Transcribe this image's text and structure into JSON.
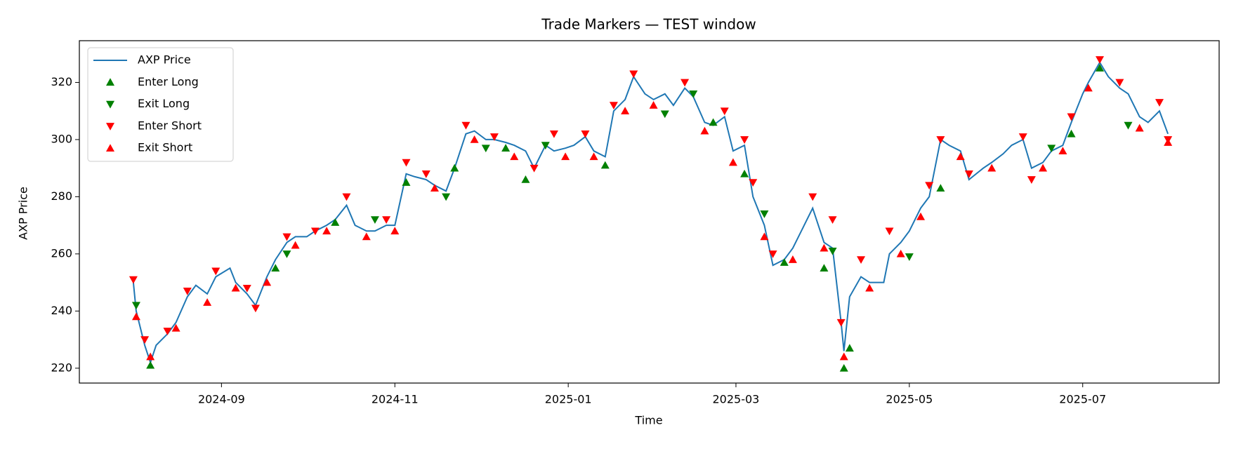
{
  "chart_data": {
    "type": "line",
    "title": "Trade Markers — TEST window",
    "x_label": "Time",
    "y_label": "AXP Price",
    "legend": "upper left",
    "xlim": [
      "2024-07-13",
      "2025-08-18"
    ],
    "ylim": [
      214.8,
      334.6
    ],
    "xticks": [
      {
        "value": "2024-09-01",
        "label": "2024-09"
      },
      {
        "value": "2024-11-01",
        "label": "2024-11"
      },
      {
        "value": "2025-01-01",
        "label": "2025-01"
      },
      {
        "value": "2025-03-01",
        "label": "2025-03"
      },
      {
        "value": "2025-05-01",
        "label": "2025-05"
      },
      {
        "value": "2025-07-01",
        "label": "2025-07"
      }
    ],
    "yticks": [
      220,
      240,
      260,
      280,
      300,
      320
    ],
    "series": [
      {
        "name": "AXP Price",
        "kind": "line",
        "color": "#1f77b4",
        "x": [
          "2024-08-01",
          "2024-08-02",
          "2024-08-05",
          "2024-08-07",
          "2024-08-09",
          "2024-08-13",
          "2024-08-16",
          "2024-08-20",
          "2024-08-23",
          "2024-08-27",
          "2024-08-30",
          "2024-09-04",
          "2024-09-06",
          "2024-09-10",
          "2024-09-13",
          "2024-09-17",
          "2024-09-20",
          "2024-09-24",
          "2024-09-27",
          "2024-10-01",
          "2024-10-04",
          "2024-10-08",
          "2024-10-11",
          "2024-10-15",
          "2024-10-18",
          "2024-10-22",
          "2024-10-25",
          "2024-10-29",
          "2024-11-01",
          "2024-11-05",
          "2024-11-08",
          "2024-11-12",
          "2024-11-15",
          "2024-11-19",
          "2024-11-22",
          "2024-11-26",
          "2024-11-29",
          "2024-12-03",
          "2024-12-06",
          "2024-12-10",
          "2024-12-13",
          "2024-12-17",
          "2024-12-20",
          "2024-12-24",
          "2024-12-27",
          "2024-12-31",
          "2025-01-03",
          "2025-01-07",
          "2025-01-10",
          "2025-01-14",
          "2025-01-17",
          "2025-01-21",
          "2025-01-24",
          "2025-01-28",
          "2025-01-31",
          "2025-02-04",
          "2025-02-07",
          "2025-02-11",
          "2025-02-14",
          "2025-02-18",
          "2025-02-21",
          "2025-02-25",
          "2025-02-28",
          "2025-03-04",
          "2025-03-07",
          "2025-03-11",
          "2025-03-14",
          "2025-03-18",
          "2025-03-21",
          "2025-03-25",
          "2025-03-28",
          "2025-04-01",
          "2025-04-04",
          "2025-04-07",
          "2025-04-08",
          "2025-04-10",
          "2025-04-14",
          "2025-04-17",
          "2025-04-22",
          "2025-04-24",
          "2025-04-28",
          "2025-05-01",
          "2025-05-05",
          "2025-05-08",
          "2025-05-12",
          "2025-05-15",
          "2025-05-19",
          "2025-05-22",
          "2025-05-27",
          "2025-05-30",
          "2025-06-03",
          "2025-06-06",
          "2025-06-10",
          "2025-06-13",
          "2025-06-17",
          "2025-06-20",
          "2025-06-24",
          "2025-06-27",
          "2025-07-01",
          "2025-07-03",
          "2025-07-07",
          "2025-07-10",
          "2025-07-14",
          "2025-07-17",
          "2025-07-21",
          "2025-07-24",
          "2025-07-28",
          "2025-07-31"
        ],
        "values": [
          250,
          240,
          228,
          222,
          228,
          232,
          236,
          245,
          249,
          246,
          252,
          255,
          250,
          246,
          242,
          252,
          258,
          264,
          266,
          266,
          268,
          270,
          272,
          277,
          270,
          268,
          268,
          270,
          270,
          288,
          287,
          286,
          284,
          282,
          290,
          302,
          303,
          300,
          300,
          299,
          298,
          296,
          290,
          298,
          296,
          297,
          298,
          301,
          296,
          294,
          310,
          314,
          322,
          316,
          314,
          316,
          312,
          318,
          315,
          306,
          305,
          308,
          296,
          298,
          280,
          270,
          256,
          258,
          262,
          270,
          276,
          264,
          262,
          236,
          226,
          245,
          252,
          250,
          250,
          260,
          264,
          268,
          276,
          280,
          300,
          298,
          296,
          286,
          290,
          292,
          295,
          298,
          300,
          290,
          292,
          296,
          298,
          306,
          316,
          320,
          327,
          322,
          318,
          316,
          308,
          306,
          310,
          302
        ]
      },
      {
        "name": "Enter Long",
        "kind": "scatter",
        "marker": "triangle-up",
        "color": "#008000",
        "x": [
          "2024-08-07",
          "2024-09-20",
          "2024-10-11",
          "2024-11-05",
          "2024-11-22",
          "2024-12-10",
          "2024-12-17",
          "2025-01-14",
          "2025-02-21",
          "2025-03-04",
          "2025-03-18",
          "2025-04-01",
          "2025-04-08",
          "2025-04-10",
          "2025-05-12",
          "2025-06-27",
          "2025-07-07"
        ],
        "values": [
          221,
          255,
          271,
          285,
          290,
          297,
          286,
          291,
          306,
          288,
          257,
          255,
          220,
          227,
          283,
          302,
          325
        ]
      },
      {
        "name": "Exit Long",
        "kind": "scatter",
        "marker": "triangle-down",
        "color": "#008000",
        "x": [
          "2024-08-02",
          "2024-09-24",
          "2024-10-25",
          "2024-11-19",
          "2024-12-03",
          "2024-12-24",
          "2025-02-04",
          "2025-02-14",
          "2025-03-11",
          "2025-04-04",
          "2025-05-01",
          "2025-06-20",
          "2025-07-17"
        ],
        "values": [
          242,
          260,
          272,
          280,
          297,
          298,
          309,
          316,
          274,
          261,
          259,
          297,
          305
        ]
      },
      {
        "name": "Enter Short",
        "kind": "scatter",
        "marker": "triangle-down",
        "color": "#ff0000",
        "x": [
          "2024-08-01",
          "2024-08-05",
          "2024-08-13",
          "2024-08-20",
          "2024-08-30",
          "2024-09-10",
          "2024-09-13",
          "2024-09-24",
          "2024-10-04",
          "2024-10-15",
          "2024-10-29",
          "2024-11-05",
          "2024-11-12",
          "2024-11-26",
          "2024-12-06",
          "2024-12-20",
          "2024-12-27",
          "2025-01-07",
          "2025-01-17",
          "2025-01-24",
          "2025-02-11",
          "2025-02-25",
          "2025-03-04",
          "2025-03-07",
          "2025-03-14",
          "2025-03-28",
          "2025-04-04",
          "2025-04-07",
          "2025-04-14",
          "2025-04-24",
          "2025-05-08",
          "2025-05-12",
          "2025-05-22",
          "2025-06-10",
          "2025-06-13",
          "2025-06-27",
          "2025-07-07",
          "2025-07-14",
          "2025-07-28",
          "2025-07-31"
        ],
        "values": [
          251,
          230,
          233,
          247,
          254,
          248,
          241,
          266,
          268,
          280,
          272,
          292,
          288,
          305,
          301,
          290,
          302,
          302,
          312,
          323,
          320,
          310,
          300,
          285,
          260,
          280,
          272,
          236,
          258,
          268,
          284,
          300,
          288,
          301,
          286,
          308,
          328,
          320,
          313,
          300
        ]
      },
      {
        "name": "Exit Short",
        "kind": "scatter",
        "marker": "triangle-up",
        "color": "#ff0000",
        "x": [
          "2024-08-02",
          "2024-08-07",
          "2024-08-16",
          "2024-08-27",
          "2024-09-06",
          "2024-09-17",
          "2024-09-27",
          "2024-10-08",
          "2024-10-22",
          "2024-11-01",
          "2024-11-15",
          "2024-11-29",
          "2024-12-13",
          "2024-12-31",
          "2025-01-10",
          "2025-01-21",
          "2025-01-31",
          "2025-02-18",
          "2025-02-28",
          "2025-03-11",
          "2025-03-21",
          "2025-04-01",
          "2025-04-08",
          "2025-04-17",
          "2025-04-28",
          "2025-05-05",
          "2025-05-19",
          "2025-05-30",
          "2025-06-17",
          "2025-06-24",
          "2025-07-03",
          "2025-07-21",
          "2025-07-31"
        ],
        "values": [
          238,
          224,
          234,
          243,
          248,
          250,
          263,
          268,
          266,
          268,
          283,
          300,
          294,
          294,
          294,
          310,
          312,
          303,
          292,
          266,
          258,
          262,
          224,
          248,
          260,
          273,
          294,
          290,
          290,
          296,
          318,
          304,
          299
        ]
      }
    ]
  }
}
